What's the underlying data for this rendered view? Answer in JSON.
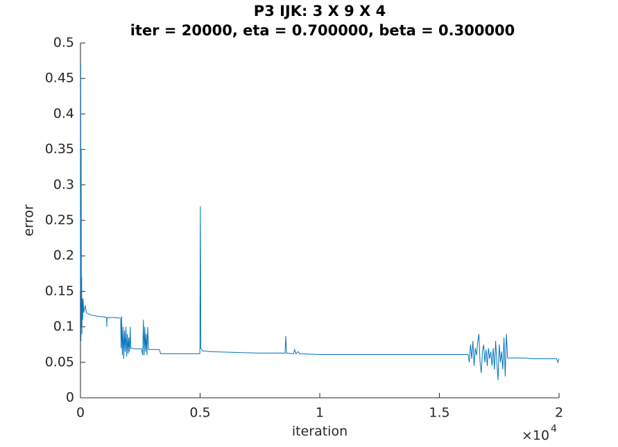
{
  "chart_data": {
    "type": "line",
    "title": "P3 IJK: 3 X 9 X 4",
    "subtitle": "iter = 20000, eta = 0.700000, beta = 0.300000",
    "xlabel": "iteration",
    "ylabel": "error",
    "x_multiplier": {
      "base": "×10",
      "exponent": "4"
    },
    "color": "#0072bd",
    "xlim": [
      0,
      20000
    ],
    "ylim": [
      0,
      0.5
    ],
    "xticks": [
      {
        "value": 0,
        "label": "0"
      },
      {
        "value": 5000,
        "label": "0.5"
      },
      {
        "value": 10000,
        "label": "1"
      },
      {
        "value": 15000,
        "label": "1.5"
      },
      {
        "value": 20000,
        "label": "2"
      }
    ],
    "yticks": [
      0,
      0.05,
      0.1,
      0.15,
      0.2,
      0.25,
      0.3,
      0.35,
      0.4,
      0.45,
      0.5
    ],
    "x": [
      0,
      10,
      20,
      30,
      40,
      50,
      60,
      70,
      90,
      110,
      140,
      200,
      250,
      400,
      700,
      1000,
      1090,
      1100,
      1110,
      1500,
      1680,
      1700,
      1720,
      1750,
      1780,
      1810,
      1840,
      1870,
      1900,
      1930,
      1960,
      1990,
      2020,
      2050,
      2080,
      2100,
      2300,
      2550,
      2600,
      2630,
      2660,
      2690,
      2720,
      2750,
      2780,
      2810,
      2850,
      3300,
      3350,
      4000,
      4990,
      5010,
      5030,
      5100,
      5500,
      6500,
      7500,
      8550,
      8580,
      8610,
      8900,
      8950,
      9000,
      9100,
      9150,
      10000,
      12000,
      14000,
      16200,
      16250,
      16300,
      16350,
      16400,
      16450,
      16500,
      16550,
      16600,
      16650,
      16700,
      16750,
      16800,
      16850,
      16900,
      16950,
      17000,
      17050,
      17100,
      17150,
      17200,
      17250,
      17300,
      17350,
      17400,
      17450,
      17500,
      17550,
      17600,
      17650,
      17700,
      17750,
      17800,
      17850,
      18500,
      19000,
      19900,
      19950,
      20000
    ],
    "values": [
      0.15,
      0.47,
      0.08,
      0.35,
      0.1,
      0.17,
      0.09,
      0.14,
      0.11,
      0.14,
      0.12,
      0.13,
      0.12,
      0.117,
      0.115,
      0.114,
      0.113,
      0.1,
      0.113,
      0.113,
      0.112,
      0.07,
      0.115,
      0.06,
      0.1,
      0.055,
      0.095,
      0.065,
      0.1,
      0.058,
      0.09,
      0.062,
      0.085,
      0.065,
      0.1,
      0.07,
      0.069,
      0.069,
      0.06,
      0.11,
      0.06,
      0.1,
      0.065,
      0.09,
      0.06,
      0.1,
      0.068,
      0.068,
      0.062,
      0.062,
      0.062,
      0.27,
      0.07,
      0.066,
      0.065,
      0.064,
      0.063,
      0.063,
      0.087,
      0.063,
      0.062,
      0.068,
      0.062,
      0.065,
      0.062,
      0.061,
      0.061,
      0.061,
      0.061,
      0.05,
      0.075,
      0.055,
      0.08,
      0.045,
      0.07,
      0.06,
      0.078,
      0.09,
      0.05,
      0.035,
      0.065,
      0.075,
      0.05,
      0.068,
      0.045,
      0.07,
      0.055,
      0.065,
      0.045,
      0.07,
      0.04,
      0.08,
      0.05,
      0.025,
      0.075,
      0.05,
      0.065,
      0.04,
      0.085,
      0.03,
      0.09,
      0.056,
      0.056,
      0.055,
      0.055,
      0.05,
      0.055
    ]
  }
}
